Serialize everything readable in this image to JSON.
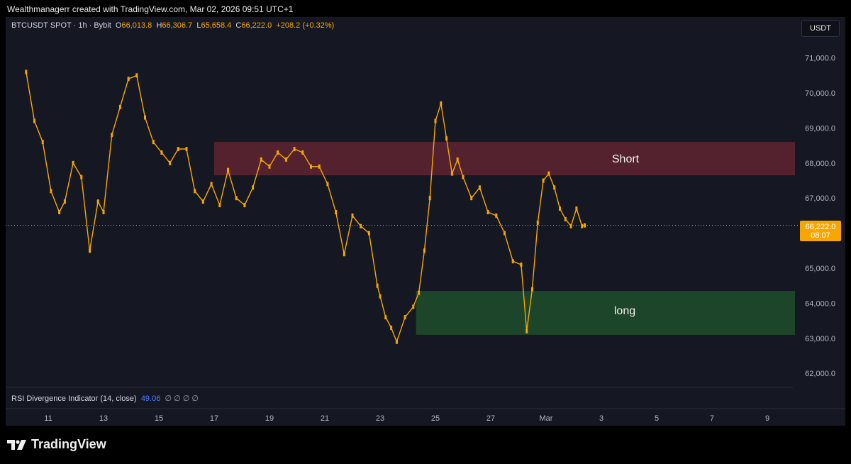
{
  "header": {
    "attribution": "Wealthmanagerr created with TradingView.com, Mar 02, 2026 09:51 UTC+1"
  },
  "legend": {
    "symbol": "BTCUSDT SPOT · 1h · Bybit",
    "o_label": "O",
    "o": "66,013.8",
    "h_label": "H",
    "h": "66,306.7",
    "l_label": "L",
    "l": "65,658.4",
    "c_label": "C",
    "c": "66,222.0",
    "change": "+208.2 (+0.32%)"
  },
  "quote_button": "USDT",
  "price_tag": {
    "price": "66,222.0",
    "countdown": "08:07"
  },
  "zones": {
    "short_label": "Short",
    "long_label": "long"
  },
  "rsi": {
    "label": "RSI Divergence Indicator (14, close)",
    "value": "49.06",
    "symbols": "∅ ∅ ∅ ∅"
  },
  "footer": {
    "logo_text": "TradingView"
  },
  "colors": {
    "background": "#151823",
    "candle": "#f7a600",
    "wick": "#8a8fa0",
    "short_zone": "#5a2330",
    "long_zone": "#1e4a2b",
    "last_price": "#f7a600"
  },
  "chart_data": {
    "type": "line",
    "title": "BTCUSDT SPOT · 1h · Bybit",
    "xlabel": "",
    "ylabel": "",
    "ylim": [
      61700,
      71600
    ],
    "y_ticks": [
      {
        "value": 71000,
        "label": "71,000.0"
      },
      {
        "value": 70000,
        "label": "70,000.0"
      },
      {
        "value": 69000,
        "label": "69,000.0"
      },
      {
        "value": 68000,
        "label": "68,000.0"
      },
      {
        "value": 67000,
        "label": "67,000.0"
      },
      {
        "value": 65000,
        "label": "65,000.0"
      },
      {
        "value": 64000,
        "label": "64,000.0"
      },
      {
        "value": 63000,
        "label": "63,000.0"
      },
      {
        "value": 62000,
        "label": "62,000.0"
      }
    ],
    "x_ticks": [
      {
        "day": 11,
        "label": "11"
      },
      {
        "day": 13,
        "label": "13"
      },
      {
        "day": 15,
        "label": "15"
      },
      {
        "day": 17,
        "label": "17"
      },
      {
        "day": 19,
        "label": "19"
      },
      {
        "day": 21,
        "label": "21"
      },
      {
        "day": 23,
        "label": "23"
      },
      {
        "day": 25,
        "label": "25"
      },
      {
        "day": 27,
        "label": "27"
      },
      {
        "day": 29,
        "label": "Mar"
      },
      {
        "day": 31,
        "label": "3"
      },
      {
        "day": 33,
        "label": "5"
      },
      {
        "day": 35,
        "label": "7"
      },
      {
        "day": 37,
        "label": "9"
      }
    ],
    "last_price": 66222.0,
    "zones": [
      {
        "label": "Short",
        "x_from": 17.0,
        "x_to": 38.0,
        "y_from": 67650,
        "y_to": 68600
      },
      {
        "label": "long",
        "x_from": 24.3,
        "x_to": 38.0,
        "y_from": 63100,
        "y_to": 64350
      }
    ],
    "series": [
      {
        "x": [
          10.2,
          10.5,
          10.8,
          11.1,
          11.4,
          11.6,
          11.9,
          12.2,
          12.5,
          12.8,
          13.0,
          13.3,
          13.6,
          13.9,
          14.2,
          14.5,
          14.8,
          15.1,
          15.4,
          15.7,
          16.0,
          16.3,
          16.6,
          16.9,
          17.2,
          17.5,
          17.8,
          18.1,
          18.4,
          18.7,
          19.0,
          19.3,
          19.6,
          19.9,
          20.2,
          20.5,
          20.8,
          21.1,
          21.4,
          21.7,
          22.0,
          22.3,
          22.6,
          22.9,
          23.0,
          23.2,
          23.4,
          23.6,
          23.9,
          24.2,
          24.4,
          24.6,
          24.8,
          25.0,
          25.2,
          25.4,
          25.6,
          25.8,
          26.0,
          26.3,
          26.6,
          26.9,
          27.2,
          27.5,
          27.8,
          28.1,
          28.3,
          28.5,
          28.7,
          28.9,
          29.1,
          29.3,
          29.5,
          29.7,
          29.9,
          30.1,
          30.3,
          30.4
        ],
        "values": [
          70600,
          69200,
          68600,
          67200,
          66600,
          66900,
          68000,
          67600,
          65500,
          66900,
          66600,
          68800,
          69600,
          70400,
          70500,
          69300,
          68600,
          68300,
          68000,
          68400,
          68400,
          67200,
          66900,
          67400,
          66800,
          67800,
          67000,
          66800,
          67300,
          68100,
          67900,
          68300,
          68100,
          68400,
          68300,
          67900,
          67900,
          67400,
          66600,
          65400,
          66500,
          66200,
          66000,
          64500,
          64200,
          63600,
          63300,
          62900,
          63600,
          63900,
          64300,
          65500,
          67000,
          69200,
          69700,
          68700,
          67700,
          68100,
          67600,
          67000,
          67300,
          66600,
          66500,
          66000,
          65200,
          65100,
          63200,
          64400,
          66300,
          67500,
          67700,
          67300,
          66700,
          66400,
          66200,
          66700,
          66200,
          66222
        ]
      }
    ]
  }
}
